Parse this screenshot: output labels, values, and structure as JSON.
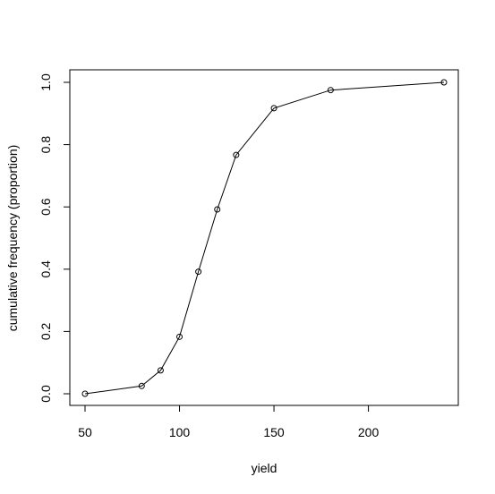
{
  "chart_data": {
    "type": "line",
    "xlabel": "yield",
    "ylabel": "cumulative frequency (proportion)",
    "xlim": [
      50,
      240
    ],
    "ylim": [
      0,
      1
    ],
    "x_ticks": [
      50,
      100,
      150,
      200
    ],
    "x_tick_labels": [
      "50",
      "100",
      "150",
      "200"
    ],
    "y_ticks": [
      0,
      0.2,
      0.4,
      0.6,
      0.8,
      1.0
    ],
    "y_tick_labels": [
      "0.0",
      "0.2",
      "0.4",
      "0.6",
      "0.8",
      "1.0"
    ],
    "grid": false,
    "markers": "open-circle",
    "series": [
      {
        "x": [
          50,
          80,
          90,
          100,
          110,
          120,
          130,
          150,
          180,
          240
        ],
        "y": [
          0.0,
          0.025,
          0.075,
          0.183,
          0.392,
          0.592,
          0.767,
          0.917,
          0.975,
          1.0
        ]
      }
    ]
  }
}
